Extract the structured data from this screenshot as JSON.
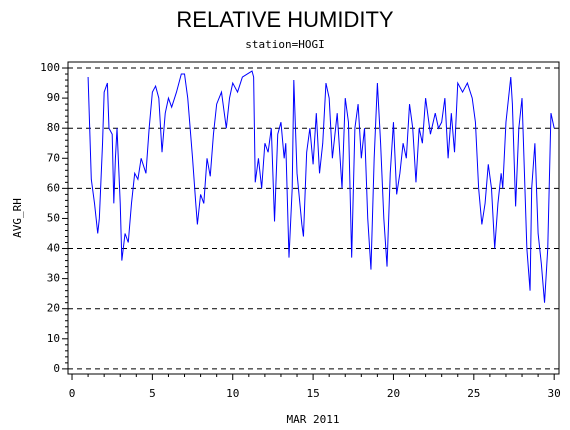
{
  "chart_data": {
    "type": "line",
    "title": "RELATIVE HUMIDITY",
    "subtitle": "station=HOGI",
    "x_label": "MAR 2011",
    "y_label": "AVG_RH",
    "xlim": [
      -0.25,
      30.3
    ],
    "ylim": [
      -1.7,
      102
    ],
    "xticks": [
      0,
      5,
      10,
      15,
      20,
      25,
      30
    ],
    "yticks": [
      0,
      10,
      20,
      30,
      40,
      50,
      60,
      70,
      80,
      90,
      100
    ],
    "ygrid": [
      0,
      20,
      40,
      60,
      80,
      100
    ],
    "series": [
      {
        "color": "#0000ff",
        "x": [
          1.0,
          1.2,
          1.4,
          1.6,
          1.7,
          1.9,
          2.0,
          2.2,
          2.3,
          2.5,
          2.6,
          2.7,
          2.8,
          3.0,
          3.1,
          3.3,
          3.5,
          3.7,
          3.9,
          4.1,
          4.3,
          4.6,
          4.8,
          5.0,
          5.2,
          5.4,
          5.6,
          5.8,
          6.0,
          6.2,
          6.5,
          6.8,
          7.0,
          7.2,
          7.5,
          7.7,
          7.8,
          8.0,
          8.2,
          8.4,
          8.6,
          8.8,
          9.0,
          9.3,
          9.6,
          9.8,
          10.0,
          10.3,
          10.6,
          10.9,
          11.2,
          11.3,
          11.4,
          11.6,
          11.8,
          12.0,
          12.2,
          12.4,
          12.6,
          12.8,
          13.0,
          13.2,
          13.3,
          13.5,
          13.7,
          13.8,
          14.0,
          14.3,
          14.4,
          14.6,
          14.8,
          15.0,
          15.2,
          15.4,
          15.6,
          15.8,
          16.0,
          16.2,
          16.5,
          16.8,
          17.0,
          17.2,
          17.4,
          17.6,
          17.8,
          18.0,
          18.2,
          18.4,
          18.6,
          18.8,
          19.0,
          19.2,
          19.4,
          19.6,
          19.8,
          20.0,
          20.2,
          20.4,
          20.6,
          20.8,
          21.0,
          21.2,
          21.4,
          21.6,
          21.8,
          22.0,
          22.3,
          22.6,
          22.8,
          23.0,
          23.2,
          23.4,
          23.6,
          23.8,
          24.0,
          24.3,
          24.6,
          24.9,
          25.1,
          25.3,
          25.5,
          25.7,
          25.9,
          26.1,
          26.3,
          26.5,
          26.7,
          26.8,
          27.0,
          27.3,
          27.4,
          27.6,
          27.8,
          28.0,
          28.3,
          28.5,
          28.6,
          28.8,
          29.0,
          29.2,
          29.4,
          29.6,
          29.8,
          30.0
        ],
        "values": [
          97,
          63,
          55,
          45,
          50,
          75,
          92,
          95,
          80,
          78,
          55,
          70,
          80,
          55,
          36,
          45,
          42,
          55,
          65,
          63,
          70,
          65,
          80,
          92,
          94,
          90,
          72,
          85,
          90,
          87,
          92,
          98,
          98,
          90,
          70,
          55,
          48,
          58,
          55,
          70,
          64,
          78,
          88,
          92,
          80,
          90,
          95,
          92,
          97,
          98,
          99,
          97,
          62,
          70,
          60,
          75,
          72,
          80,
          49,
          78,
          82,
          70,
          75,
          37,
          60,
          96,
          65,
          48,
          44,
          72,
          80,
          68,
          85,
          65,
          75,
          95,
          90,
          70,
          85,
          60,
          90,
          82,
          37,
          80,
          88,
          70,
          80,
          50,
          33,
          70,
          95,
          75,
          50,
          34,
          65,
          82,
          58,
          65,
          75,
          70,
          88,
          80,
          62,
          80,
          75,
          90,
          78,
          85,
          80,
          82,
          90,
          70,
          85,
          72,
          95,
          92,
          95,
          90,
          82,
          60,
          48,
          55,
          68,
          60,
          40,
          55,
          65,
          60,
          82,
          97,
          88,
          54,
          80,
          90,
          40,
          26,
          60,
          75,
          45,
          35,
          22,
          40,
          85,
          80
        ]
      }
    ]
  }
}
